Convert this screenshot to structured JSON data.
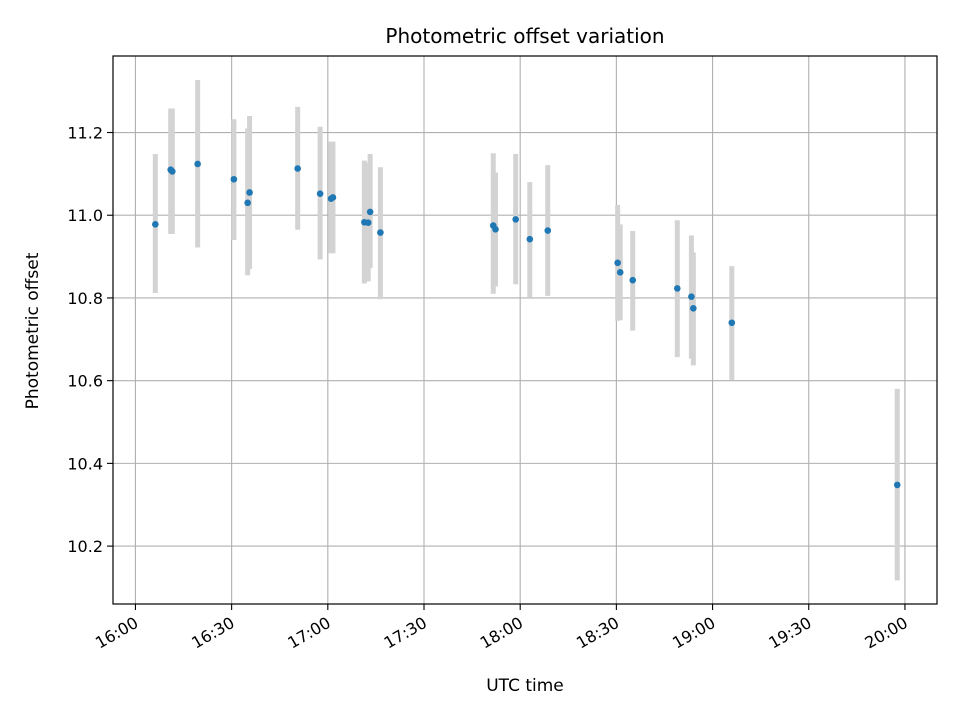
{
  "chart_data": {
    "type": "scatter",
    "title": "Photometric offset variation",
    "xlabel": "UTC time",
    "ylabel": "Photometric offset",
    "grid": true,
    "xlim_minutes": [
      953,
      1210
    ],
    "ylim": [
      10.06,
      11.385
    ],
    "x_ticks": [
      {
        "minutes": 960,
        "label": "16:00"
      },
      {
        "minutes": 990,
        "label": "16:30"
      },
      {
        "minutes": 1020,
        "label": "17:00"
      },
      {
        "minutes": 1050,
        "label": "17:30"
      },
      {
        "minutes": 1080,
        "label": "18:00"
      },
      {
        "minutes": 1110,
        "label": "18:30"
      },
      {
        "minutes": 1140,
        "label": "19:00"
      },
      {
        "minutes": 1170,
        "label": "19:30"
      },
      {
        "minutes": 1200,
        "label": "20:00"
      }
    ],
    "y_ticks": [
      {
        "value": 10.2,
        "label": "10.2"
      },
      {
        "value": 10.4,
        "label": "10.4"
      },
      {
        "value": 10.6,
        "label": "10.6"
      },
      {
        "value": 10.8,
        "label": "10.8"
      },
      {
        "value": 11.0,
        "label": "11.0"
      },
      {
        "value": 11.2,
        "label": "11.2"
      }
    ],
    "series": [
      {
        "name": "offset",
        "color": "#1f77b4",
        "errorbar_color": "#d3d3d3",
        "points": [
          {
            "t": 966.2,
            "y": 10.978,
            "lo": 10.812,
            "hi": 11.148
          },
          {
            "t": 971.0,
            "y": 11.11,
            "lo": 10.955,
            "hi": 11.258
          },
          {
            "t": 971.5,
            "y": 11.106,
            "lo": 10.955,
            "hi": 11.258
          },
          {
            "t": 979.4,
            "y": 11.124,
            "lo": 10.922,
            "hi": 11.327
          },
          {
            "t": 990.7,
            "y": 11.087,
            "lo": 10.94,
            "hi": 11.232
          },
          {
            "t": 995.0,
            "y": 11.03,
            "lo": 10.855,
            "hi": 11.21
          },
          {
            "t": 995.6,
            "y": 11.055,
            "lo": 10.87,
            "hi": 11.24
          },
          {
            "t": 1010.6,
            "y": 11.113,
            "lo": 10.965,
            "hi": 11.262
          },
          {
            "t": 1017.6,
            "y": 11.052,
            "lo": 10.893,
            "hi": 11.214
          },
          {
            "t": 1021.0,
            "y": 11.04,
            "lo": 10.908,
            "hi": 11.178
          },
          {
            "t": 1021.6,
            "y": 11.043,
            "lo": 10.908,
            "hi": 11.178
          },
          {
            "t": 1031.4,
            "y": 10.983,
            "lo": 10.835,
            "hi": 11.132
          },
          {
            "t": 1032.6,
            "y": 10.982,
            "lo": 10.84,
            "hi": 11.127
          },
          {
            "t": 1033.2,
            "y": 11.008,
            "lo": 10.872,
            "hi": 11.148
          },
          {
            "t": 1036.4,
            "y": 10.958,
            "lo": 10.797,
            "hi": 11.116
          },
          {
            "t": 1071.6,
            "y": 10.975,
            "lo": 10.81,
            "hi": 11.15
          },
          {
            "t": 1072.3,
            "y": 10.966,
            "lo": 10.828,
            "hi": 11.103
          },
          {
            "t": 1078.6,
            "y": 10.99,
            "lo": 10.833,
            "hi": 11.148
          },
          {
            "t": 1083.0,
            "y": 10.942,
            "lo": 10.802,
            "hi": 11.08
          },
          {
            "t": 1088.6,
            "y": 10.963,
            "lo": 10.805,
            "hi": 11.121
          },
          {
            "t": 1110.4,
            "y": 10.885,
            "lo": 10.745,
            "hi": 11.025
          },
          {
            "t": 1111.2,
            "y": 10.862,
            "lo": 10.746,
            "hi": 10.978
          },
          {
            "t": 1115.1,
            "y": 10.843,
            "lo": 10.721,
            "hi": 10.962
          },
          {
            "t": 1129.0,
            "y": 10.823,
            "lo": 10.657,
            "hi": 10.988
          },
          {
            "t": 1133.4,
            "y": 10.803,
            "lo": 10.653,
            "hi": 10.951
          },
          {
            "t": 1134.0,
            "y": 10.775,
            "lo": 10.637,
            "hi": 10.91
          },
          {
            "t": 1146.0,
            "y": 10.74,
            "lo": 10.602,
            "hi": 10.877
          },
          {
            "t": 1197.6,
            "y": 10.348,
            "lo": 10.117,
            "hi": 10.58
          }
        ]
      }
    ]
  }
}
